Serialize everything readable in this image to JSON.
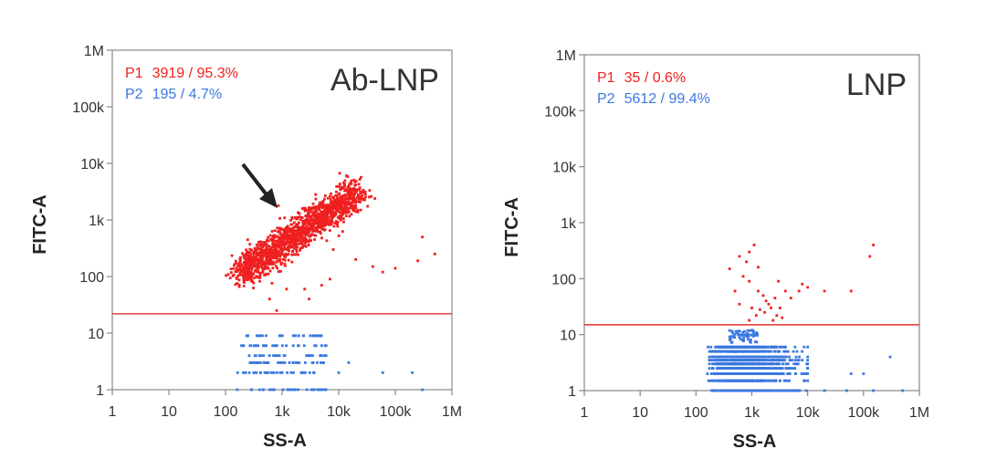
{
  "chart_data": [
    {
      "type": "scatter",
      "xscale": "log",
      "yscale": "log",
      "xlim": [
        1,
        1000000
      ],
      "ylim": [
        1,
        1000000
      ],
      "xlabel": "SS-A",
      "ylabel": "FITC-A",
      "xticks": [
        "1",
        "10",
        "100",
        "1k",
        "10k",
        "100k",
        "1M"
      ],
      "yticks": [
        "1",
        "10",
        "100",
        "1k",
        "10k",
        "100k",
        "1M"
      ],
      "label": "Ab-LNP",
      "gate_threshold": 22,
      "annotation": "black arrow pointing to P1 population",
      "stats": [
        {
          "name": "P1",
          "text": "3919 / 95.3%",
          "color": "#f02020"
        },
        {
          "name": "P2",
          "text": "195 / 4.7%",
          "color": "#3a78e0"
        }
      ],
      "populations": [
        {
          "name": "P1",
          "color": "#f02020",
          "count": 3919,
          "percent": 95.3,
          "center": [
            1000,
            600
          ],
          "spread": "diagonal cloud from (150,100) to (30k,4k)"
        },
        {
          "name": "P2",
          "color": "#3a78e0",
          "count": 195,
          "percent": 4.7,
          "center": [
            600,
            3
          ],
          "spread": "x 150–8k, y 1–10"
        }
      ]
    },
    {
      "type": "scatter",
      "xscale": "log",
      "yscale": "log",
      "xlim": [
        1,
        1000000
      ],
      "ylim": [
        1,
        1000000
      ],
      "xlabel": "SS-A",
      "ylabel": "FITC-A",
      "xticks": [
        "1",
        "10",
        "100",
        "1k",
        "10k",
        "100k",
        "1M"
      ],
      "yticks": [
        "1",
        "10",
        "100",
        "1k",
        "10k",
        "100k",
        "1M"
      ],
      "label": "LNP",
      "gate_threshold": 15,
      "stats": [
        {
          "name": "P1",
          "text": "35 / 0.6%",
          "color": "#f02020"
        },
        {
          "name": "P2",
          "text": "5612 / 99.4%",
          "color": "#3a78e0"
        }
      ],
      "populations": [
        {
          "name": "P1",
          "color": "#f02020",
          "count": 35,
          "percent": 0.6,
          "center": [
            1500,
            50
          ],
          "spread": "sparse, x 300–150k, y 20–500"
        },
        {
          "name": "P2",
          "color": "#3a78e0",
          "count": 5612,
          "percent": 99.4,
          "center": [
            800,
            3
          ],
          "spread": "x 150–10k, y 1–12, banded"
        }
      ]
    }
  ]
}
